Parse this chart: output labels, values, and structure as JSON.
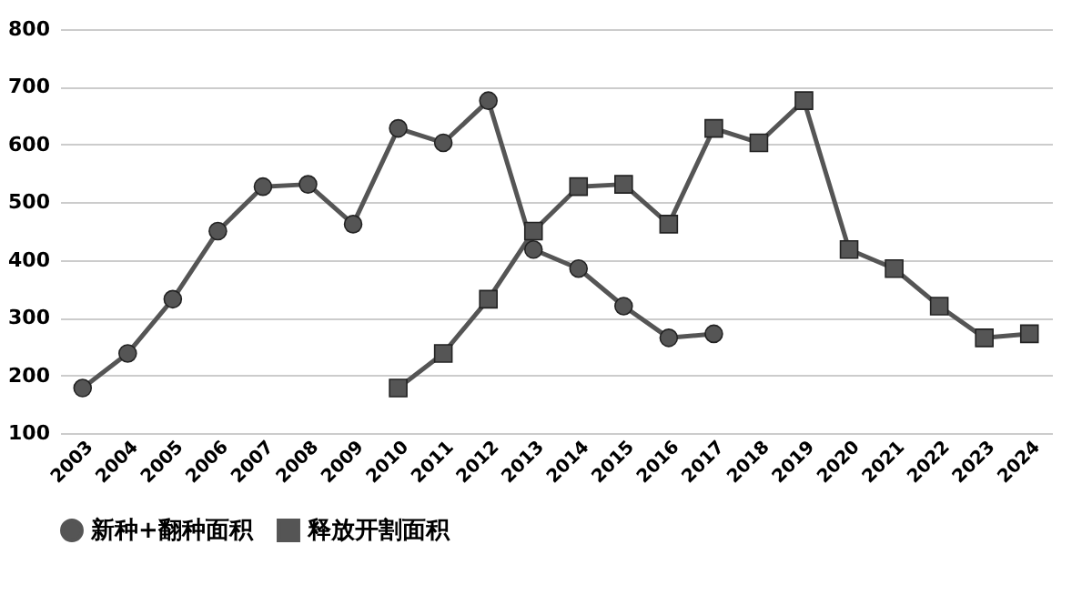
{
  "chart_data": {
    "type": "line",
    "categories": [
      "2003",
      "2004",
      "2005",
      "2006",
      "2007",
      "2008",
      "2009",
      "2010",
      "2011",
      "2012",
      "2013",
      "2014",
      "2015",
      "2016",
      "2017",
      "2018",
      "2019",
      "2020",
      "2021",
      "2022",
      "2023",
      "2024"
    ],
    "series": [
      {
        "name": "新种+翻种面积",
        "color": "#555555",
        "marker": "circle",
        "values": [
          178,
          238,
          332,
          450,
          527,
          531,
          462,
          628,
          603,
          676,
          418,
          385,
          320,
          265,
          272,
          null,
          null,
          null,
          null,
          null,
          null,
          null
        ]
      },
      {
        "name": "释放开割面积",
        "color": "#555555",
        "marker": "square",
        "values": [
          null,
          null,
          null,
          null,
          null,
          null,
          null,
          178,
          238,
          332,
          450,
          527,
          531,
          462,
          628,
          603,
          676,
          418,
          385,
          320,
          265,
          272
        ]
      }
    ],
    "ylim": [
      100,
      800
    ],
    "yticks": [
      100,
      200,
      300,
      400,
      500,
      600,
      700,
      800
    ],
    "grid": "y",
    "legend": "bottom"
  }
}
